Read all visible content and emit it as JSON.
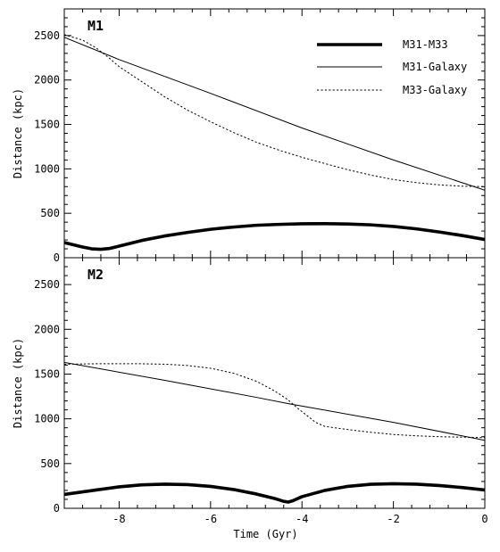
{
  "chart_data": [
    {
      "type": "line",
      "panel_label": "M1",
      "xlabel": "",
      "ylabel": "Distance (kpc)",
      "xlim": [
        -9.2,
        0
      ],
      "ylim": [
        0,
        2800
      ],
      "xticks": [
        -8,
        -6,
        -4,
        -2,
        0
      ],
      "xtick_labels": [
        "-8",
        "-6",
        "-4",
        "-2",
        "0"
      ],
      "yticks": [
        0,
        500,
        1000,
        1500,
        2000,
        2500
      ],
      "ytick_labels": [
        "0",
        "500",
        "1000",
        "1500",
        "2000",
        "2500"
      ],
      "legend": {
        "placement": "top-right"
      },
      "series": [
        {
          "name": "M31-M33",
          "style": "thick",
          "x": [
            -9.2,
            -9.0,
            -8.8,
            -8.6,
            -8.4,
            -8.2,
            -8.0,
            -7.5,
            -7.0,
            -6.5,
            -6.0,
            -5.5,
            -5.0,
            -4.5,
            -4.0,
            -3.5,
            -3.0,
            -2.5,
            -2.0,
            -1.5,
            -1.0,
            -0.5,
            0.0
          ],
          "y": [
            170,
            145,
            120,
            100,
            95,
            105,
            130,
            195,
            245,
            285,
            320,
            345,
            365,
            375,
            382,
            383,
            380,
            370,
            352,
            325,
            290,
            250,
            205
          ]
        },
        {
          "name": "M31-Galaxy",
          "style": "thin",
          "x": [
            -9.2,
            -8.0,
            -6.0,
            -4.0,
            -2.0,
            0.0
          ],
          "y": [
            2480,
            2230,
            1850,
            1460,
            1100,
            760
          ]
        },
        {
          "name": "M33-Galaxy",
          "style": "dotted",
          "x": [
            -9.2,
            -8.8,
            -8.5,
            -8.2,
            -8.0,
            -7.5,
            -7.0,
            -6.5,
            -6.0,
            -5.5,
            -5.0,
            -4.5,
            -4.0,
            -3.5,
            -3.0,
            -2.5,
            -2.0,
            -1.5,
            -1.0,
            -0.5,
            0.0
          ],
          "y": [
            2510,
            2450,
            2360,
            2240,
            2150,
            1980,
            1810,
            1660,
            1530,
            1410,
            1300,
            1210,
            1130,
            1060,
            990,
            930,
            880,
            845,
            820,
            805,
            800
          ]
        }
      ]
    },
    {
      "type": "line",
      "panel_label": "M2",
      "xlabel": "Time (Gyr)",
      "ylabel": "Distance (kpc)",
      "xlim": [
        -9.2,
        0
      ],
      "ylim": [
        0,
        2800
      ],
      "xticks": [
        -8,
        -6,
        -4,
        -2,
        0
      ],
      "xtick_labels": [
        "-8",
        "-6",
        "-4",
        "-2",
        "0"
      ],
      "yticks": [
        0,
        500,
        1000,
        1500,
        2000,
        2500
      ],
      "ytick_labels": [
        "0",
        "500",
        "1000",
        "1500",
        "2000",
        "2500"
      ],
      "series": [
        {
          "name": "M31-M33",
          "style": "thick",
          "x": [
            -9.2,
            -8.5,
            -8.0,
            -7.5,
            -7.0,
            -6.5,
            -6.0,
            -5.5,
            -5.0,
            -4.6,
            -4.4,
            -4.3,
            -4.2,
            -4.0,
            -3.5,
            -3.0,
            -2.5,
            -2.0,
            -1.5,
            -1.0,
            -0.5,
            0.0
          ],
          "y": [
            155,
            205,
            240,
            262,
            270,
            265,
            245,
            210,
            160,
            110,
            78,
            70,
            85,
            130,
            200,
            245,
            268,
            275,
            270,
            255,
            232,
            205
          ]
        },
        {
          "name": "M31-Galaxy",
          "style": "thin",
          "x": [
            -9.2,
            -7.0,
            -5.0,
            -4.3,
            -2.0,
            0.0
          ],
          "y": [
            1630,
            1430,
            1240,
            1170,
            960,
            760
          ]
        },
        {
          "name": "M33-Galaxy",
          "style": "dotted",
          "x": [
            -9.2,
            -8.5,
            -8.0,
            -7.5,
            -7.0,
            -6.5,
            -6.0,
            -5.5,
            -5.0,
            -4.7,
            -4.5,
            -4.3,
            -4.1,
            -3.9,
            -3.7,
            -3.5,
            -3.0,
            -2.5,
            -2.0,
            -1.5,
            -1.0,
            -0.5,
            0.0
          ],
          "y": [
            1610,
            1615,
            1615,
            1615,
            1610,
            1595,
            1565,
            1510,
            1420,
            1340,
            1280,
            1210,
            1120,
            1040,
            960,
            915,
            880,
            850,
            825,
            810,
            800,
            795,
            790
          ]
        }
      ]
    }
  ]
}
